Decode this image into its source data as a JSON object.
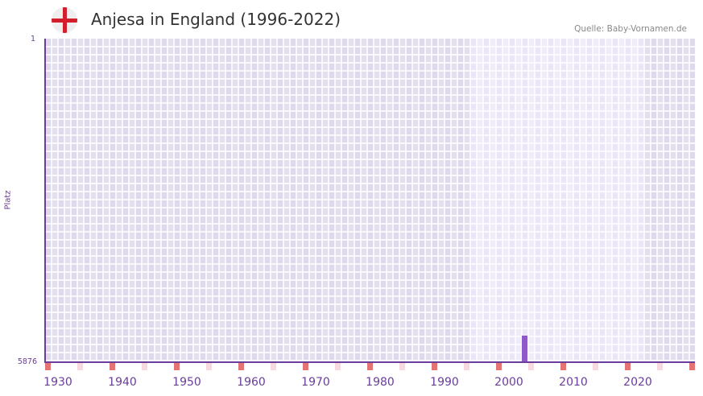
{
  "header": {
    "title": "Anjesa in England (1996-2022)",
    "flag_icon": "england-flag-icon",
    "source": "Quelle: Baby-Vornamen.de"
  },
  "axes": {
    "y_label": "Platz",
    "y_top": "1",
    "y_bottom": "5876",
    "x_ticks": [
      "1930",
      "1940",
      "1950",
      "1960",
      "1970",
      "1980",
      "1990",
      "2000",
      "2010",
      "2020"
    ]
  },
  "colors": {
    "axis": "#6a3d9a",
    "bar": "#8e59c8",
    "plot_bg_outside": "#e3dfee",
    "plot_bg_data_range": "#f0ecfa",
    "decade_marker": "#e57373",
    "half_decade_marker": "#f7d9e0"
  },
  "chart_data": {
    "type": "bar",
    "title": "Anjesa in England (1996-2022)",
    "xlabel": "",
    "ylabel": "Platz",
    "ylim": [
      5876,
      1
    ],
    "y_inverted": true,
    "xlim": [
      1928,
      2028
    ],
    "x_tick_labels": [
      "1930",
      "1940",
      "1950",
      "1960",
      "1970",
      "1980",
      "1990",
      "2000",
      "2010",
      "2020"
    ],
    "highlight_range": [
      1996,
      2022
    ],
    "grid": true,
    "legend": null,
    "categories": [
      "2002"
    ],
    "values": [
      5400
    ],
    "series": [
      {
        "name": "Anjesa",
        "values": [
          {
            "year": 2002,
            "rank": 5400
          }
        ]
      }
    ]
  }
}
